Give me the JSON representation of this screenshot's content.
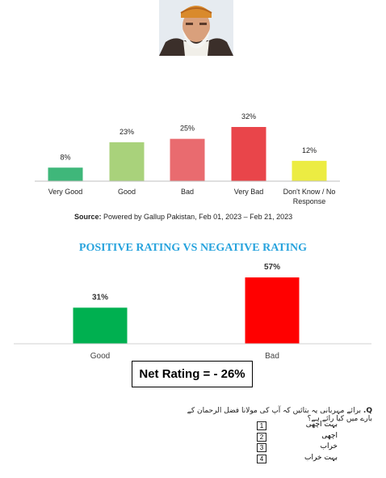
{
  "chart_data": [
    {
      "type": "bar",
      "categories": [
        "Very Good",
        "Good",
        "Bad",
        "Very Bad",
        "Don't Know / No Response"
      ],
      "category_lines": [
        [
          "Very Good"
        ],
        [
          "Good"
        ],
        [
          "Bad"
        ],
        [
          "Very Bad"
        ],
        [
          "Don't Know / No",
          "Response"
        ]
      ],
      "values": [
        8,
        23,
        25,
        32,
        12
      ],
      "value_labels": [
        "8%",
        "23%",
        "25%",
        "32%",
        "12%"
      ],
      "colors": [
        "#3fb77a",
        "#a9d27b",
        "#e96b6f",
        "#e9454a",
        "#ecec42"
      ],
      "ylim": [
        0,
        35
      ],
      "grid": false,
      "source_label": "Source:",
      "source_text": " Powered by Gallup Pakistan, Feb 01, 2023 – Feb 21, 2023"
    },
    {
      "type": "bar",
      "title": "POSITIVE RATING VS NEGATIVE RATING",
      "categories": [
        "Good",
        "Bad"
      ],
      "values": [
        31,
        57
      ],
      "value_labels": [
        "31%",
        "57%"
      ],
      "colors": [
        "#00b050",
        "#ff0000"
      ],
      "ylim": [
        0,
        64
      ],
      "grid": false
    }
  ],
  "net_rating": "Net Rating = - 26%",
  "question": {
    "prefix": "Q.",
    "text": "برائے مہربانی یہ بتائیں کہ آپ کی مولانا فضل الرحمان کے بارے میں کیا رائے ہے؟",
    "options": [
      {
        "num": "1",
        "label": "بہت اچھی"
      },
      {
        "num": "2",
        "label": "اچھی"
      },
      {
        "num": "3",
        "label": "خراب"
      },
      {
        "num": "4",
        "label": "بہت خراب"
      }
    ]
  }
}
